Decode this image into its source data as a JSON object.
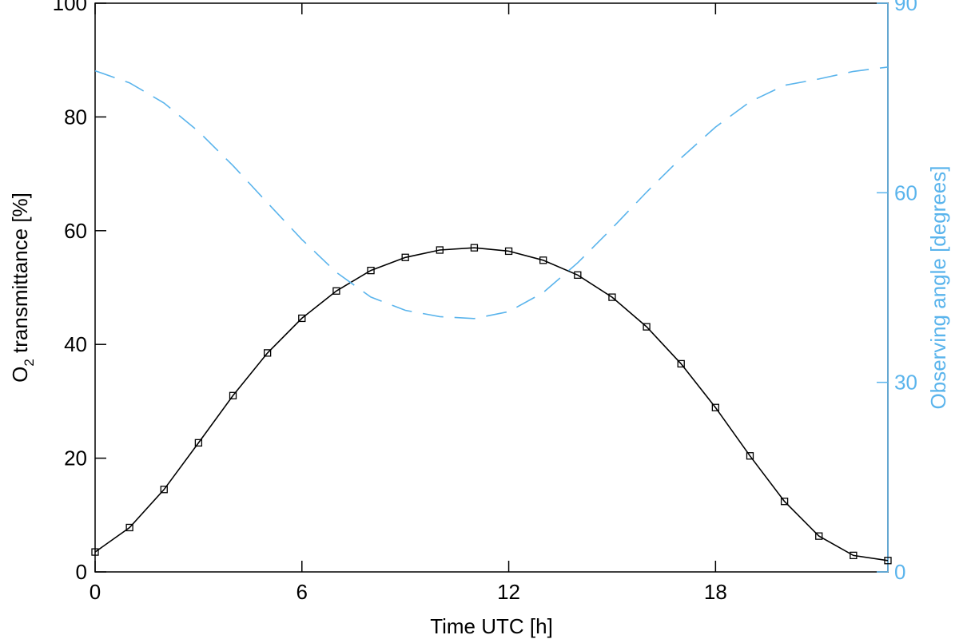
{
  "chart_data": {
    "type": "line",
    "xlabel": "Time UTC [h]",
    "ylabel_left": {
      "prefix": "O",
      "subscript": "2",
      "suffix": " transmittance [%]"
    },
    "ylabel_right": "Observing angle [degrees]",
    "xlim": [
      0,
      23
    ],
    "ylim_left": [
      0,
      100
    ],
    "ylim_right": [
      0,
      90
    ],
    "x_ticks": [
      0,
      6,
      12,
      18
    ],
    "y_ticks_left": [
      0,
      20,
      40,
      60,
      80,
      100
    ],
    "y_ticks_right": [
      0,
      30,
      60,
      90
    ],
    "grid": false,
    "legend": "none",
    "colors": {
      "transmittance": "#000000",
      "angle": "#5ab4ec"
    },
    "series": [
      {
        "axis": "left",
        "style": "solid-square-markers",
        "x": [
          0,
          1,
          2,
          3,
          4,
          5,
          6,
          7,
          8,
          9,
          10,
          11,
          12,
          13,
          14,
          15,
          16,
          17,
          18,
          19,
          20,
          21,
          22,
          23
        ],
        "values": [
          3.5,
          7.8,
          14.5,
          22.7,
          31.0,
          38.5,
          44.6,
          49.4,
          53.0,
          55.3,
          56.6,
          57.0,
          56.4,
          54.8,
          52.2,
          48.3,
          43.1,
          36.6,
          28.9,
          20.4,
          12.4,
          6.3,
          2.9,
          2.0
        ]
      },
      {
        "axis": "right",
        "style": "dashed",
        "x": [
          0,
          1,
          2,
          3,
          4,
          5,
          6,
          7,
          8,
          9,
          10,
          11,
          12,
          13,
          14,
          15,
          16,
          17,
          18,
          19,
          20,
          21,
          22,
          23
        ],
        "values": [
          79.3,
          77.4,
          74.2,
          69.7,
          64.3,
          58.4,
          52.6,
          47.4,
          43.5,
          41.4,
          40.4,
          40.1,
          41.2,
          44.2,
          48.9,
          54.4,
          60.1,
          65.5,
          70.4,
          74.4,
          77.0,
          78.0,
          79.2,
          79.9
        ]
      }
    ]
  }
}
